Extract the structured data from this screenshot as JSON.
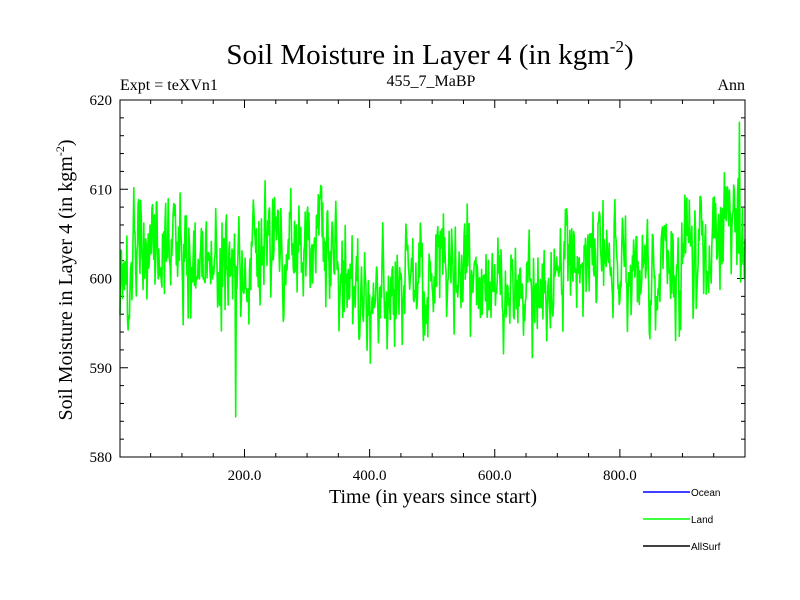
{
  "chart_data": {
    "type": "line",
    "title": "Soil Moisture in Layer 4 (in kgm",
    "title_superscript": "-2",
    "title_close": ")",
    "subtitle_left": "Expt = teXVn1",
    "subtitle_center": "455_7_MaBP",
    "subtitle_right": "Ann",
    "xlabel": "Time (in years since start)",
    "ylabel": "Soil Moisture in Layer 4 (in kgm",
    "ylabel_superscript": "-2",
    "ylabel_close": ")",
    "xlim": [
      1,
      1000
    ],
    "ylim": [
      580,
      620
    ],
    "x_ticks": [
      200,
      400,
      600,
      800
    ],
    "x_tick_labels": [
      "200.0",
      "400.0",
      "600.0",
      "800.0"
    ],
    "y_ticks": [
      580,
      590,
      600,
      610,
      620
    ],
    "y_tick_labels": [
      "580",
      "590",
      "600",
      "610",
      "620"
    ],
    "series": [
      {
        "name": "Ocean",
        "color": "#0000ff",
        "values": []
      },
      {
        "name": "Land",
        "color": "#00ff00",
        "generator": {
          "n": 1000,
          "mean": 601,
          "sd": 5.5,
          "min": 584.5,
          "max": 617.5,
          "seed": 4557
        }
      },
      {
        "name": "AllSurf",
        "color": "#000000",
        "values": []
      }
    ],
    "legend": [
      "Ocean",
      "Land",
      "AllSurf"
    ],
    "legend_position": "bottom-right"
  }
}
